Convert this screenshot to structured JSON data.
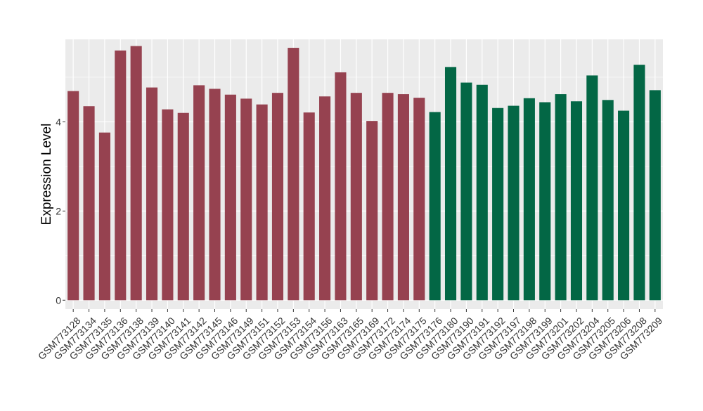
{
  "chart_data": {
    "type": "bar",
    "title": "",
    "xlabel": "",
    "ylabel": "Expression Level",
    "ylim": [
      -0.2,
      5.85
    ],
    "yticks": [
      0,
      2,
      4
    ],
    "grid": true,
    "legend": "none",
    "colors": {
      "panel_bg": "#EBEBEB",
      "grid": "#FFFFFF",
      "group1": "#964250",
      "group2": "#036745",
      "axis_text": "#333333"
    },
    "categories": [
      "GSM773128",
      "GSM773134",
      "GSM773135",
      "GSM773136",
      "GSM773138",
      "GSM773139",
      "GSM773140",
      "GSM773141",
      "GSM773142",
      "GSM773145",
      "GSM773146",
      "GSM773149",
      "GSM773151",
      "GSM773152",
      "GSM773153",
      "GSM773154",
      "GSM773156",
      "GSM773163",
      "GSM773165",
      "GSM773169",
      "GSM773172",
      "GSM773174",
      "GSM773175",
      "GSM773176",
      "GSM773180",
      "GSM773190",
      "GSM773191",
      "GSM773192",
      "GSM773197",
      "GSM773198",
      "GSM773199",
      "GSM773201",
      "GSM773202",
      "GSM773204",
      "GSM773205",
      "GSM773206",
      "GSM773208",
      "GSM773209"
    ],
    "values": [
      4.69,
      4.35,
      3.76,
      5.6,
      5.7,
      4.77,
      4.28,
      4.2,
      4.82,
      4.74,
      4.61,
      4.52,
      4.39,
      4.65,
      5.66,
      4.21,
      4.57,
      5.11,
      4.65,
      4.02,
      4.65,
      4.62,
      4.54,
      4.22,
      5.23,
      4.88,
      4.83,
      4.31,
      4.36,
      4.53,
      4.44,
      4.62,
      4.46,
      5.04,
      4.49,
      4.25,
      5.28,
      4.71
    ],
    "groups": [
      1,
      1,
      1,
      1,
      1,
      1,
      1,
      1,
      1,
      1,
      1,
      1,
      1,
      1,
      1,
      1,
      1,
      1,
      1,
      1,
      1,
      1,
      1,
      2,
      2,
      2,
      2,
      2,
      2,
      2,
      2,
      2,
      2,
      2,
      2,
      2,
      2,
      2
    ]
  }
}
